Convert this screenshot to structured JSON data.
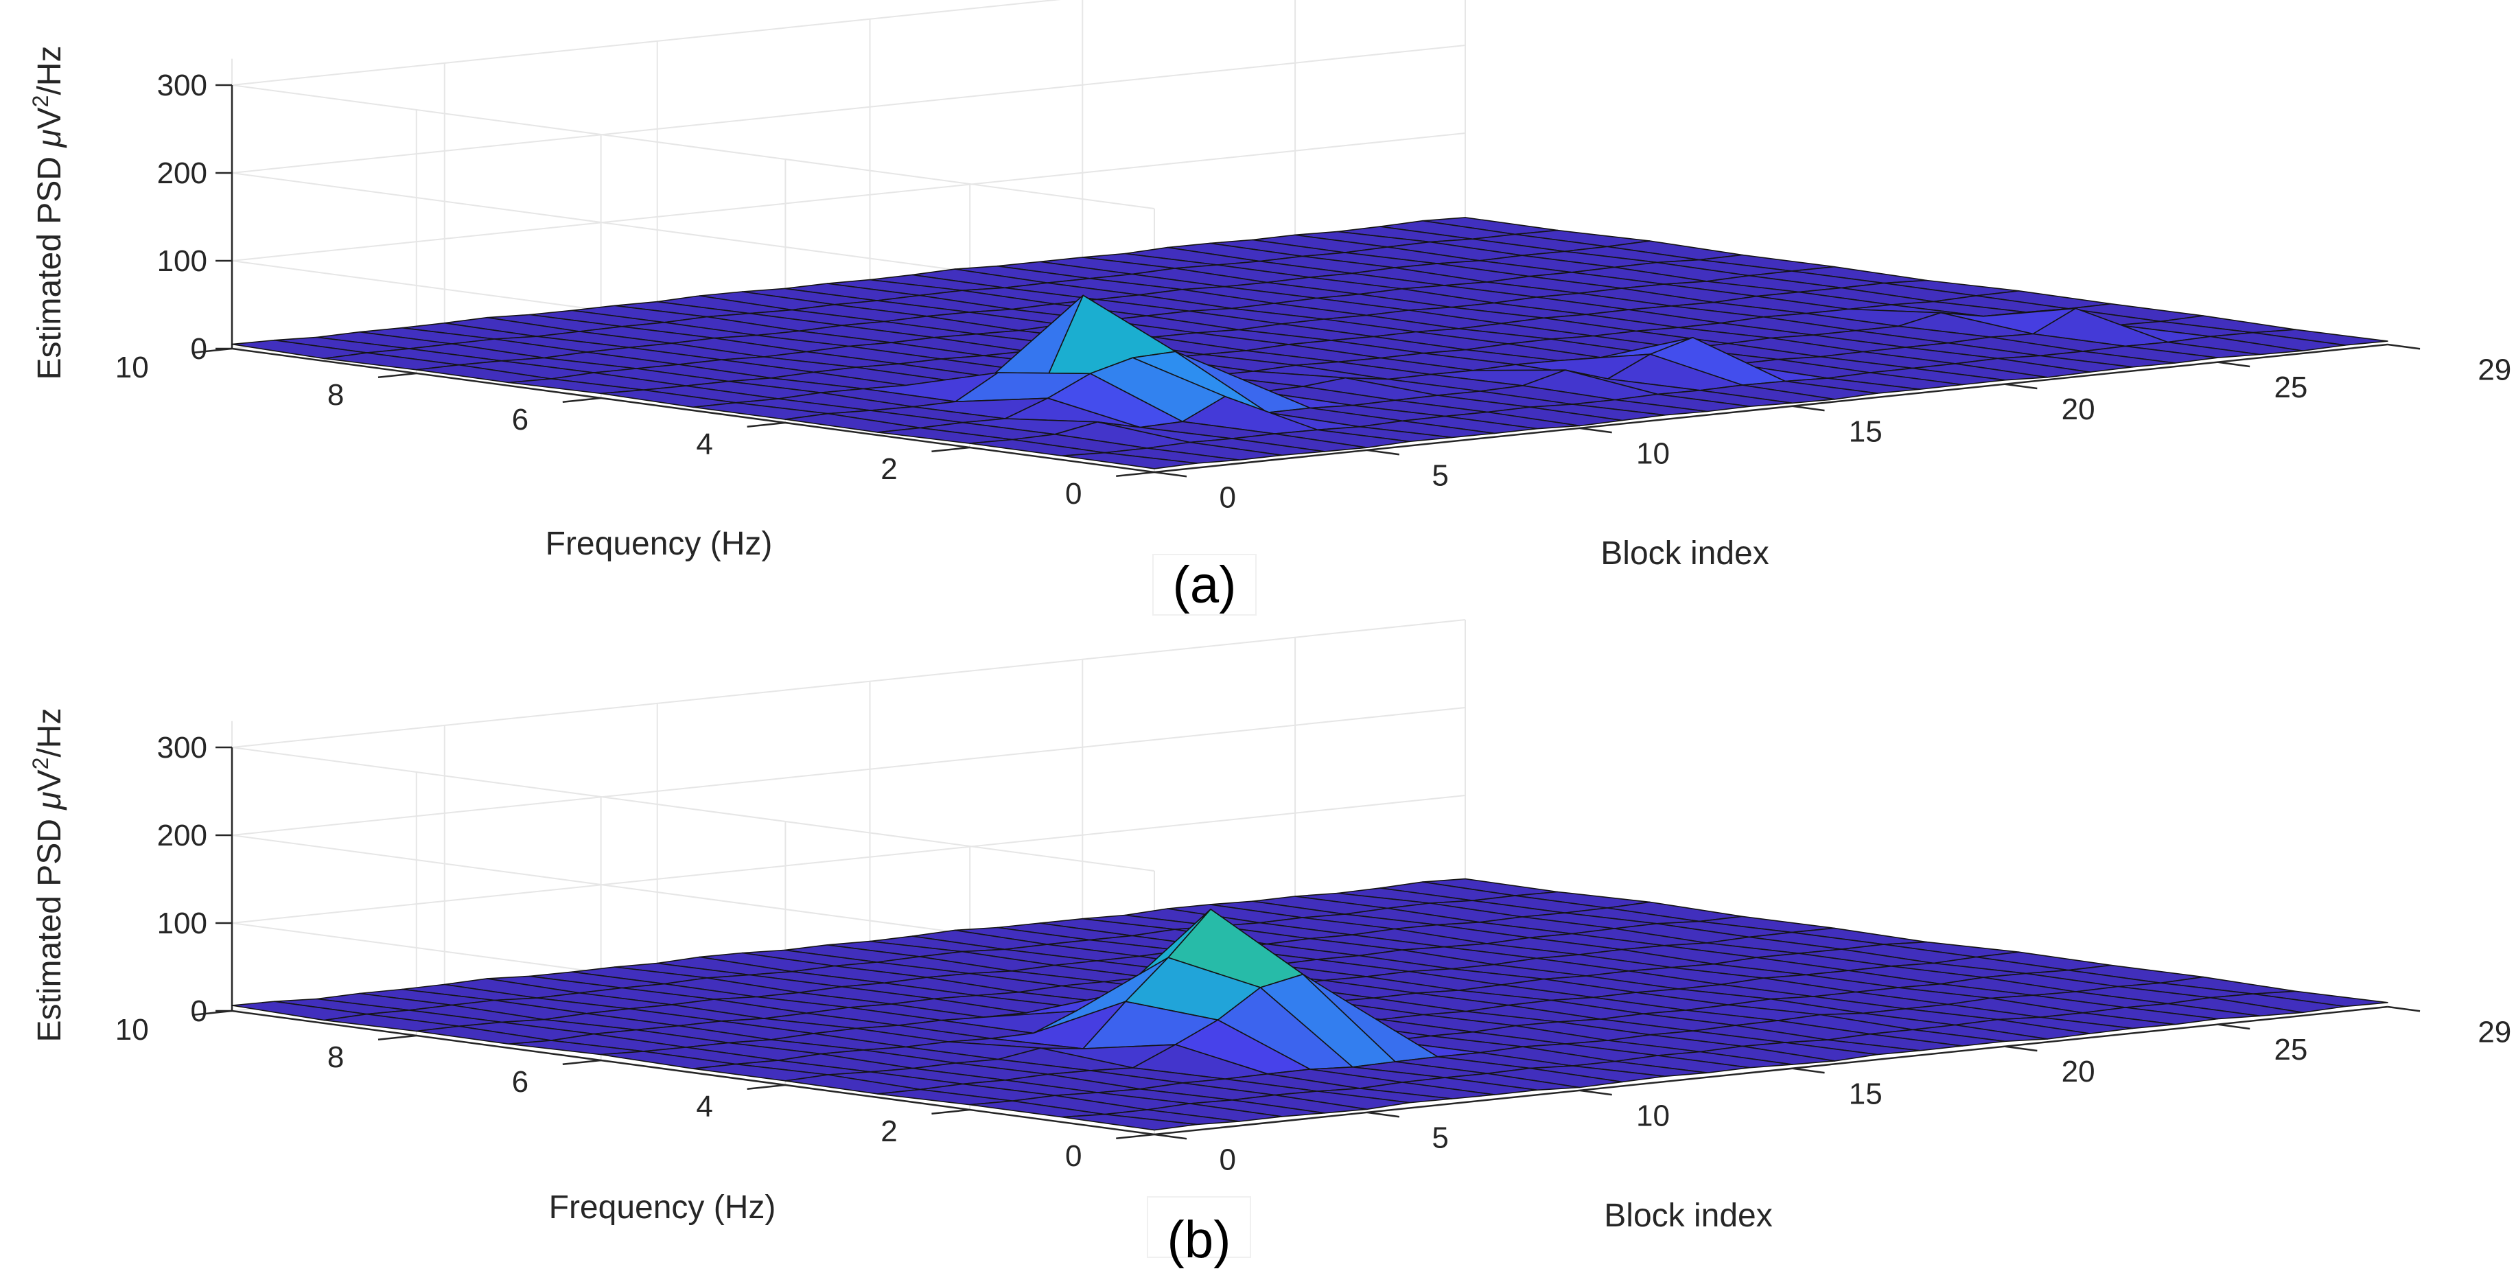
{
  "chart_data": [
    {
      "type": "surface",
      "panel_label": "(a)",
      "xlabel": "Block index",
      "ylabel": "Frequency (Hz)",
      "zlabel_prefix": "Estimated PSD ",
      "zlabel_mu": "μ",
      "zlabel_v": "V",
      "zlabel_sup": "2",
      "zlabel_suffix": "/Hz",
      "xlim": [
        0,
        29
      ],
      "ylim": [
        0,
        10
      ],
      "zlim": [
        0,
        300
      ],
      "xticks": [
        "0",
        "5",
        "10",
        "15",
        "20",
        "25",
        "29"
      ],
      "yticks": [
        "0",
        "2",
        "4",
        "6",
        "8",
        "10"
      ],
      "zticks": [
        "0",
        "100",
        "200",
        "300"
      ],
      "colormap": [
        "#3e26a8",
        "#4743ec",
        "#2d8ff0",
        "#17b5c8",
        "#36c18b",
        "#a8c844",
        "#f9d41c"
      ],
      "baseline": 4,
      "peaks": [
        {
          "x": 7,
          "y": 4,
          "z": 110
        },
        {
          "x": 6,
          "y": 3,
          "z": 58
        },
        {
          "x": 5,
          "y": 3,
          "z": 45
        },
        {
          "x": 7,
          "y": 3,
          "z": 60
        },
        {
          "x": 8,
          "y": 4,
          "z": 40
        },
        {
          "x": 8,
          "y": 3,
          "z": 35
        },
        {
          "x": 5,
          "y": 4,
          "z": 32
        },
        {
          "x": 6,
          "y": 2,
          "z": 28
        },
        {
          "x": 4,
          "y": 3,
          "z": 22
        },
        {
          "x": 17,
          "y": 2,
          "z": 40
        },
        {
          "x": 16,
          "y": 2,
          "z": 26
        },
        {
          "x": 14,
          "y": 2,
          "z": 18
        },
        {
          "x": 26,
          "y": 2,
          "z": 28
        },
        {
          "x": 25,
          "y": 3,
          "z": 14
        },
        {
          "x": 3,
          "y": 2,
          "z": 14
        },
        {
          "x": 11,
          "y": 3,
          "z": 10
        }
      ]
    },
    {
      "type": "surface",
      "panel_label": "(b)",
      "xlabel": "Block index",
      "ylabel": "Frequency (Hz)",
      "zlabel_prefix": "Estimated PSD ",
      "zlabel_mu": "μ",
      "zlabel_v": "V",
      "zlabel_sup": "2",
      "zlabel_suffix": "/Hz",
      "xlim": [
        0,
        29
      ],
      "ylim": [
        0,
        10
      ],
      "zlim": [
        0,
        300
      ],
      "xticks": [
        "0",
        "5",
        "10",
        "15",
        "20",
        "25",
        "29"
      ],
      "yticks": [
        "0",
        "2",
        "4",
        "6",
        "8",
        "10"
      ],
      "zticks": [
        "0",
        "100",
        "200",
        "300"
      ],
      "colormap": [
        "#3e26a8",
        "#4743ec",
        "#2d8ff0",
        "#17b5c8",
        "#36c18b",
        "#a8c844",
        "#f9d41c"
      ],
      "baseline": 5,
      "peaks": [
        {
          "x": 10,
          "y": 4,
          "z": 150
        },
        {
          "x": 9,
          "y": 4,
          "z": 100
        },
        {
          "x": 10,
          "y": 3,
          "z": 90
        },
        {
          "x": 9,
          "y": 3,
          "z": 80
        },
        {
          "x": 11,
          "y": 4,
          "z": 72
        },
        {
          "x": 11,
          "y": 3,
          "z": 55
        },
        {
          "x": 8,
          "y": 4,
          "z": 55
        },
        {
          "x": 8,
          "y": 3,
          "z": 48
        },
        {
          "x": 10,
          "y": 5,
          "z": 40
        },
        {
          "x": 7,
          "y": 3,
          "z": 25
        },
        {
          "x": 12,
          "y": 4,
          "z": 22
        },
        {
          "x": 9,
          "y": 5,
          "z": 25
        },
        {
          "x": 20,
          "y": 2,
          "z": 8
        },
        {
          "x": 6,
          "y": 4,
          "z": 12
        }
      ]
    }
  ]
}
